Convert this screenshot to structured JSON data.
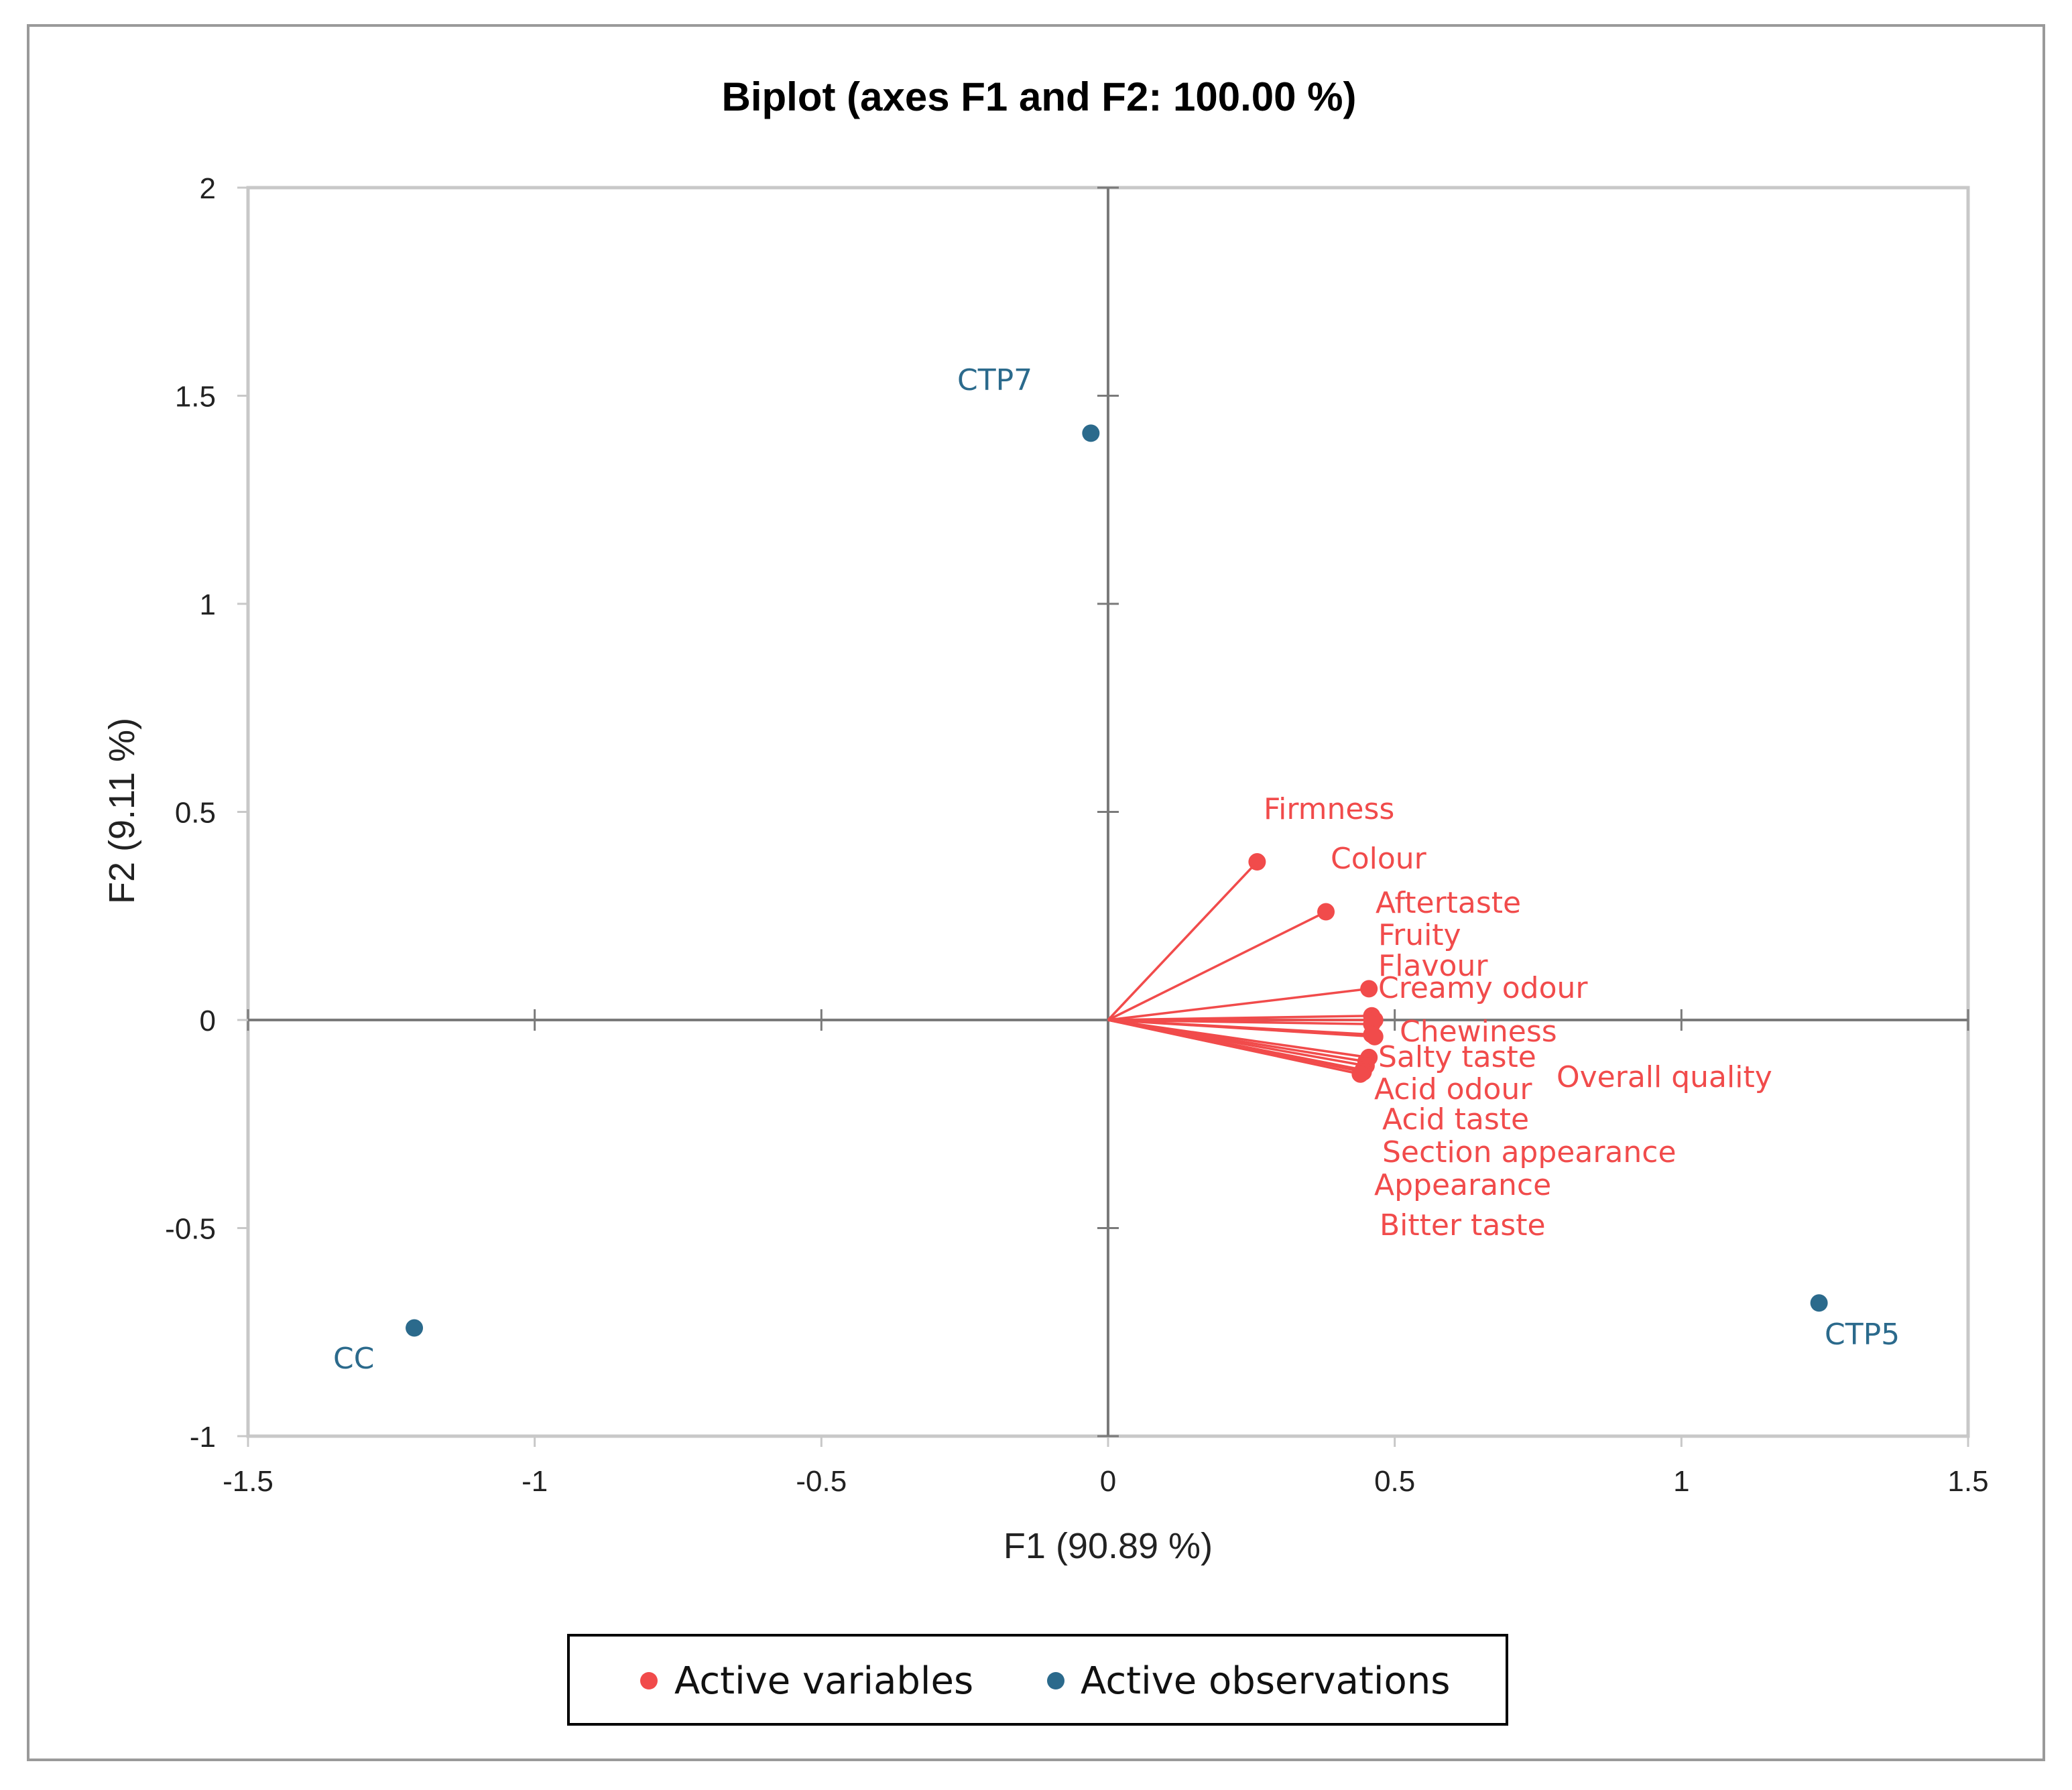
{
  "chart_data": {
    "type": "scatter",
    "title": "Biplot (axes F1 and F2: 100.00 %)",
    "xlabel": "F1 (90.89 %)",
    "ylabel": "F2 (9.11 %)",
    "xlim": [
      -1.5,
      1.5
    ],
    "ylim": [
      -1,
      2
    ],
    "x_ticks": [
      "-1.5",
      "-1",
      "-0.5",
      "0",
      "0.5",
      "1",
      "1.5"
    ],
    "y_ticks": [
      "-1",
      "-0.5",
      "0",
      "0.5",
      "1",
      "1.5",
      "2"
    ],
    "legend_position": "bottom",
    "colors": {
      "variables": "#f14b4b",
      "observations": "#2b6a8c"
    },
    "series": [
      {
        "name": "Active variables",
        "points": [
          {
            "label": "Firmness",
            "x": 0.26,
            "y": 0.38
          },
          {
            "label": "Colour",
            "x": 0.38,
            "y": 0.26
          },
          {
            "label": "Aftertaste",
            "x": 0.46,
            "y": 0.01
          },
          {
            "label": "Fruity",
            "x": 0.465,
            "y": 0.0
          },
          {
            "label": "Flavour",
            "x": 0.46,
            "y": -0.01
          },
          {
            "label": "Creamy odour",
            "x": 0.455,
            "y": 0.075
          },
          {
            "label": "Chewiness",
            "x": 0.465,
            "y": -0.04
          },
          {
            "label": "Salty taste",
            "x": 0.455,
            "y": -0.09
          },
          {
            "label": "Overall quality",
            "x": 0.46,
            "y": -0.035
          },
          {
            "label": "Acid odour",
            "x": 0.45,
            "y": -0.1
          },
          {
            "label": "Acid taste",
            "x": 0.45,
            "y": -0.11
          },
          {
            "label": "Section appearance",
            "x": 0.445,
            "y": -0.12
          },
          {
            "label": "Appearance",
            "x": 0.445,
            "y": -0.125
          },
          {
            "label": "Bitter taste",
            "x": 0.44,
            "y": -0.13
          }
        ]
      },
      {
        "name": "Active observations",
        "points": [
          {
            "label": "CTP7",
            "x": -0.03,
            "y": 1.41
          },
          {
            "label": "CC",
            "x": -1.21,
            "y": -0.74
          },
          {
            "label": "CTP5",
            "x": 1.24,
            "y": -0.68
          }
        ]
      }
    ]
  }
}
